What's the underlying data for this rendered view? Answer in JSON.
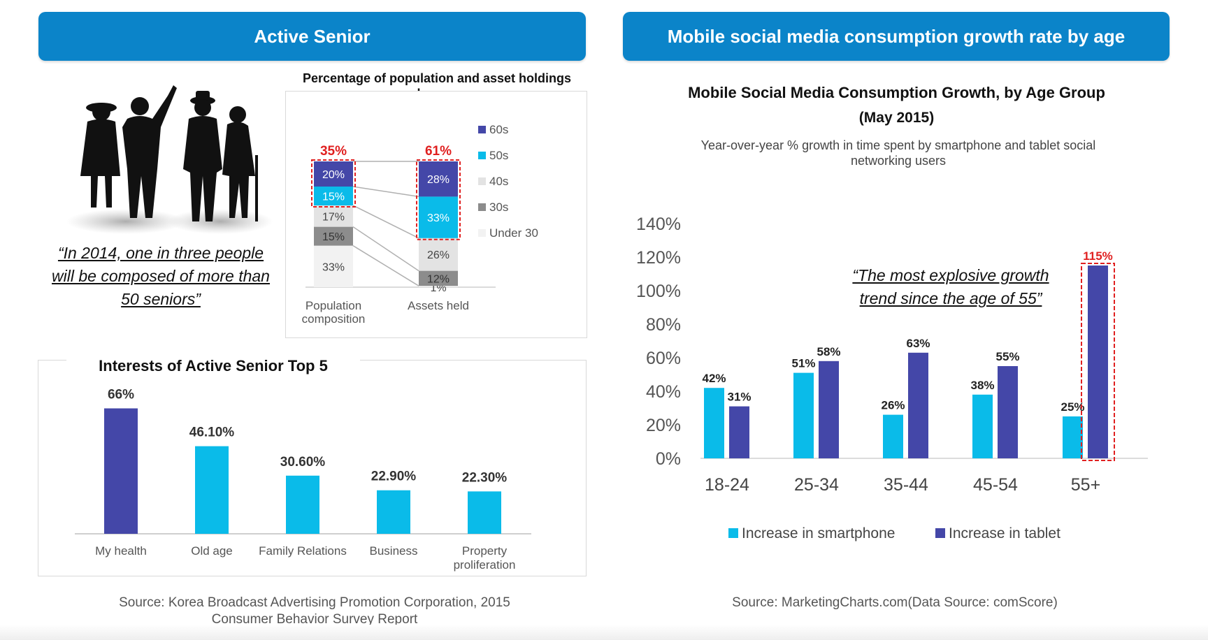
{
  "left_banner": "Active Senior",
  "right_banner": "Mobile social media consumption growth rate by age",
  "left_quote": "“In 2014, one in three people will be composed of more than 50 seniors”",
  "right_quote": "“The most explosive growth trend since the age of 55”",
  "left_source": "Source: Korea Broadcast Advertising Promotion Corporation, 2015 Consumer Behavior Survey Report",
  "right_source": "Source: MarketingCharts.com(Data Source: comScore)",
  "colors": {
    "banner": "#0b84c9",
    "dark_blue": "#4447a8",
    "cyan": "#0abbe9",
    "light_gray": "#e3e3e3",
    "mid_gray": "#8c8c8c",
    "highlight_red": "#e02020"
  },
  "chart_data": [
    {
      "type": "bar",
      "stacked": true,
      "title": "Percentage of population and asset holdings by age",
      "categories": [
        "Population composition",
        "Assets held"
      ],
      "series": [
        {
          "name": "Under 30",
          "values": [
            33,
            1
          ],
          "labels": [
            "33%",
            "1%"
          ]
        },
        {
          "name": "30s",
          "values": [
            15,
            12
          ],
          "labels": [
            "15%",
            "12%"
          ]
        },
        {
          "name": "40s",
          "values": [
            17,
            26
          ],
          "labels": [
            "17%",
            "26%"
          ]
        },
        {
          "name": "50s",
          "values": [
            15,
            33
          ],
          "labels": [
            "15%",
            "33%"
          ]
        },
        {
          "name": "60s",
          "values": [
            20,
            28
          ],
          "labels": [
            "20%",
            "28%"
          ]
        }
      ],
      "highlight_labels": [
        "35%",
        "61%"
      ],
      "legend": [
        "60s",
        "50s",
        "40s",
        "30s",
        "Under 30"
      ],
      "legend_position": "right"
    },
    {
      "type": "bar",
      "title": "Interests of Active Senior Top 5",
      "categories": [
        "My health",
        "Old age",
        "Family Relations",
        "Business",
        "Property proliferation"
      ],
      "values": [
        66,
        46.1,
        30.6,
        22.9,
        22.3
      ],
      "value_labels": [
        "66%",
        "46.10%",
        "30.60%",
        "22.90%",
        "22.30%"
      ]
    },
    {
      "type": "bar",
      "title": "Mobile Social Media Consumption Growth, by Age Group",
      "title_line2": "(May 2015)",
      "subtitle": "Year-over-year % growth in time spent by smartphone and tablet social networking users",
      "categories": [
        "18-24",
        "25-34",
        "35-44",
        "45-54",
        "55+"
      ],
      "series": [
        {
          "name": "Increase in smartphone",
          "values": [
            42,
            51,
            26,
            38,
            25
          ]
        },
        {
          "name": "Increase in tablet",
          "values": [
            31,
            58,
            63,
            55,
            115
          ]
        }
      ],
      "ylim": [
        0,
        140
      ],
      "yticks": [
        "0%",
        "20%",
        "40%",
        "60%",
        "80%",
        "100%",
        "120%",
        "140%"
      ],
      "legend_position": "bottom",
      "highlight": "115%"
    }
  ]
}
